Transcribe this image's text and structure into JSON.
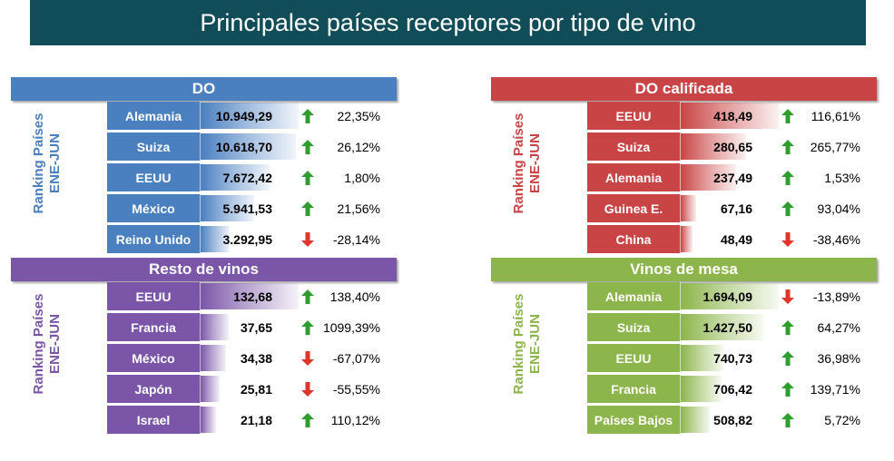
{
  "title": "Principales países receptores por tipo de vino",
  "rank_label": [
    "Ranking Países",
    "ENE-JUN"
  ],
  "colors": {
    "title_bg": "#114d58",
    "arrow_up": "#2e9e2e",
    "arrow_down": "#e0352b"
  },
  "chart_data": [
    {
      "type": "bar",
      "title": "DO",
      "color": "#4a7fc0",
      "categories": [
        "Alemania",
        "Suiza",
        "EEUU",
        "México",
        "Reino Unido"
      ],
      "values": [
        10949.29,
        10618.7,
        7672.42,
        5941.53,
        3292.95
      ],
      "value_labels": [
        "10.949,29",
        "10.618,70",
        "7.672,42",
        "5.941,53",
        "3.292,95"
      ],
      "changes": [
        "22,35%",
        "26,12%",
        "1,80%",
        "21,56%",
        "-28,14%"
      ],
      "directions": [
        "up",
        "up",
        "up",
        "up",
        "down"
      ]
    },
    {
      "type": "bar",
      "title": "DO calificada",
      "color": "#c94545",
      "categories": [
        "EEUU",
        "Suiza",
        "Alemania",
        "Guinea E.",
        "China"
      ],
      "values": [
        418.49,
        280.65,
        237.49,
        67.16,
        48.49
      ],
      "value_labels": [
        "418,49",
        "280,65",
        "237,49",
        "67,16",
        "48,49"
      ],
      "changes": [
        "116,61%",
        "265,77%",
        "1,53%",
        "93,04%",
        "-38,46%"
      ],
      "directions": [
        "up",
        "up",
        "up",
        "up",
        "down"
      ]
    },
    {
      "type": "bar",
      "title": "Resto de vinos",
      "color": "#7b56a8",
      "categories": [
        "EEUU",
        "Francia",
        "México",
        "Japón",
        "Israel"
      ],
      "values": [
        132.68,
        37.65,
        34.38,
        25.81,
        21.18
      ],
      "value_labels": [
        "132,68",
        "37,65",
        "34,38",
        "25,81",
        "21,18"
      ],
      "changes": [
        "138,40%",
        "1099,39%",
        "-67,07%",
        "-55,55%",
        "110,12%"
      ],
      "directions": [
        "up",
        "up",
        "down",
        "down",
        "up"
      ]
    },
    {
      "type": "bar",
      "title": "Vinos de mesa",
      "color": "#8cb54b",
      "categories": [
        "Alemania",
        "Suiza",
        "EEUU",
        "Francia",
        "Países Bajos"
      ],
      "values": [
        1694.09,
        1427.5,
        740.73,
        706.42,
        508.82
      ],
      "value_labels": [
        "1.694,09",
        "1.427,50",
        "740,73",
        "706,42",
        "508,82"
      ],
      "changes": [
        "-13,89%",
        "64,27%",
        "36,98%",
        "139,71%",
        "5,72%"
      ],
      "directions": [
        "down",
        "up",
        "up",
        "up",
        "up"
      ]
    }
  ]
}
